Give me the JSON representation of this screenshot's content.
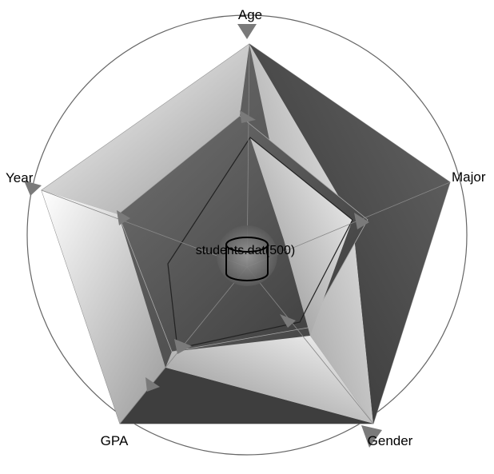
{
  "chart_data": {
    "type": "radar",
    "axes": [
      "Age",
      "Major",
      "Gender",
      "GPA",
      "Year"
    ],
    "center_label": "students.dat(500)",
    "grid": false,
    "legend": "none",
    "colors": {
      "outer_circle": "#555555",
      "dark_panel": "#4a4a4a",
      "light_panel": "#f4f4f4",
      "marker": "#777777",
      "line": "#222222"
    }
  }
}
